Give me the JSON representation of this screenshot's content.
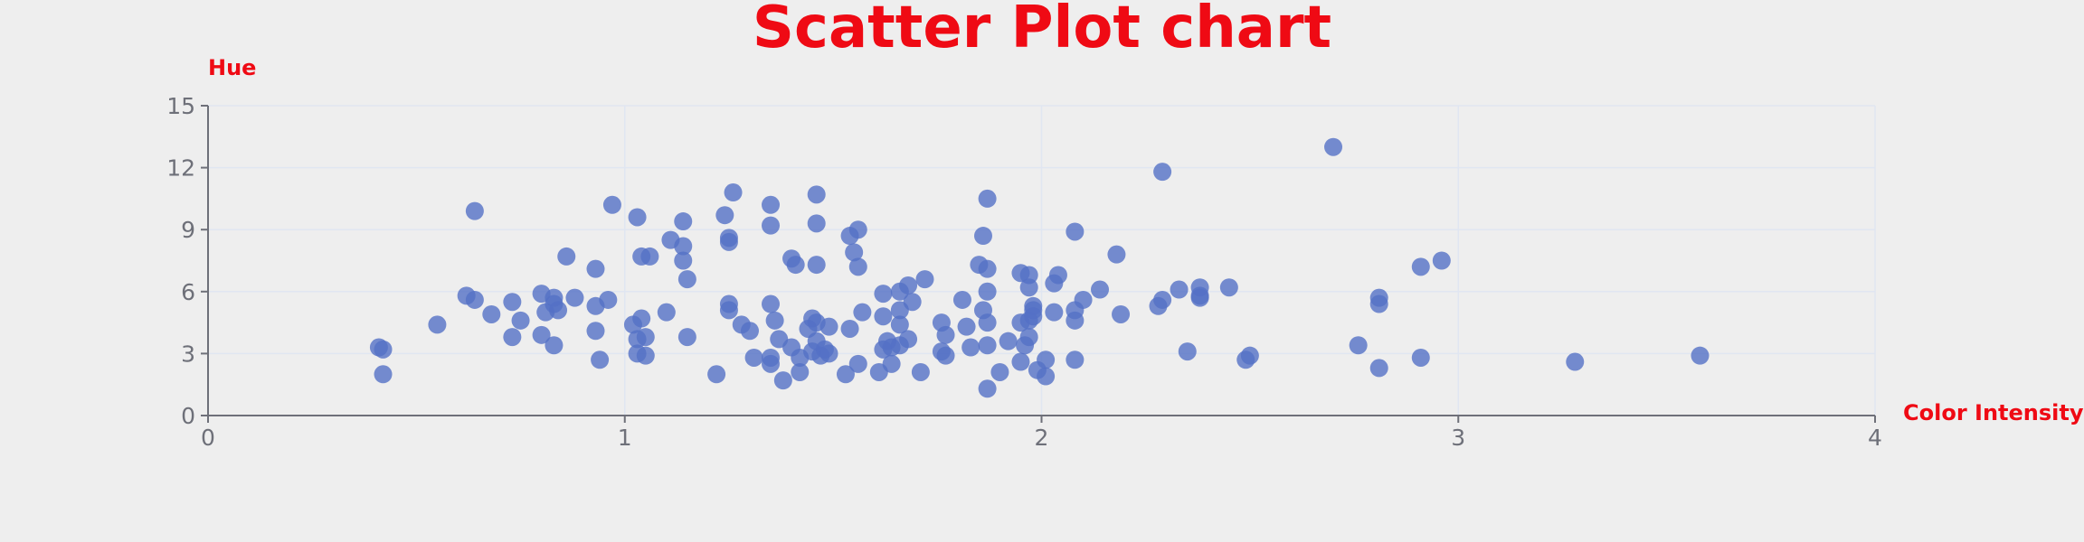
{
  "chart_data": {
    "type": "scatter",
    "title": "Scatter Plot chart",
    "xlabel": "Color Intensity",
    "ylabel": "Hue",
    "xlim": [
      0,
      4
    ],
    "ylim": [
      0,
      15
    ],
    "x_ticks": [
      0,
      1,
      2,
      3,
      4
    ],
    "y_ticks": [
      0,
      3,
      6,
      9,
      12,
      15
    ],
    "grid": true,
    "colors": {
      "point": "#5470c6",
      "title": "#ef0a14",
      "axis_name": "#ef0a14",
      "tick_label": "#6e7079",
      "grid": "#e0e6f1"
    },
    "points": [
      [
        0.41,
        3.3
      ],
      [
        0.42,
        3.2
      ],
      [
        0.42,
        2.0
      ],
      [
        0.55,
        4.4
      ],
      [
        0.62,
        5.8
      ],
      [
        0.64,
        5.6
      ],
      [
        0.64,
        9.9
      ],
      [
        0.68,
        4.9
      ],
      [
        0.73,
        3.8
      ],
      [
        0.73,
        5.5
      ],
      [
        0.75,
        4.6
      ],
      [
        0.8,
        3.9
      ],
      [
        0.8,
        5.9
      ],
      [
        0.81,
        5.0
      ],
      [
        0.83,
        5.7
      ],
      [
        0.83,
        5.4
      ],
      [
        0.83,
        3.4
      ],
      [
        0.84,
        5.1
      ],
      [
        0.86,
        7.7
      ],
      [
        0.88,
        5.7
      ],
      [
        0.93,
        7.1
      ],
      [
        0.93,
        4.1
      ],
      [
        0.93,
        5.3
      ],
      [
        0.94,
        2.7
      ],
      [
        0.96,
        5.6
      ],
      [
        0.97,
        10.2
      ],
      [
        1.02,
        4.4
      ],
      [
        1.03,
        9.6
      ],
      [
        1.03,
        3.7
      ],
      [
        1.03,
        3.0
      ],
      [
        1.04,
        7.7
      ],
      [
        1.04,
        4.7
      ],
      [
        1.05,
        2.9
      ],
      [
        1.05,
        3.8
      ],
      [
        1.06,
        7.7
      ],
      [
        1.1,
        5.0
      ],
      [
        1.11,
        8.5
      ],
      [
        1.14,
        9.4
      ],
      [
        1.14,
        8.2
      ],
      [
        1.14,
        7.5
      ],
      [
        1.15,
        6.6
      ],
      [
        1.15,
        3.8
      ],
      [
        1.22,
        2.0
      ],
      [
        1.24,
        9.7
      ],
      [
        1.25,
        8.6
      ],
      [
        1.25,
        8.4
      ],
      [
        1.25,
        5.4
      ],
      [
        1.25,
        5.1
      ],
      [
        1.26,
        10.8
      ],
      [
        1.28,
        4.4
      ],
      [
        1.3,
        4.1
      ],
      [
        1.31,
        2.8
      ],
      [
        1.35,
        10.2
      ],
      [
        1.35,
        9.2
      ],
      [
        1.35,
        5.4
      ],
      [
        1.35,
        2.8
      ],
      [
        1.35,
        2.5
      ],
      [
        1.36,
        4.6
      ],
      [
        1.37,
        3.7
      ],
      [
        1.38,
        1.7
      ],
      [
        1.4,
        7.6
      ],
      [
        1.4,
        3.3
      ],
      [
        1.41,
        7.3
      ],
      [
        1.42,
        2.8
      ],
      [
        1.42,
        2.1
      ],
      [
        1.44,
        4.2
      ],
      [
        1.45,
        4.7
      ],
      [
        1.45,
        3.1
      ],
      [
        1.46,
        10.7
      ],
      [
        1.46,
        9.3
      ],
      [
        1.46,
        7.3
      ],
      [
        1.46,
        4.5
      ],
      [
        1.46,
        3.6
      ],
      [
        1.47,
        2.9
      ],
      [
        1.48,
        3.2
      ],
      [
        1.49,
        4.3
      ],
      [
        1.49,
        3.0
      ],
      [
        1.53,
        2.0
      ],
      [
        1.54,
        8.7
      ],
      [
        1.54,
        4.2
      ],
      [
        1.55,
        7.9
      ],
      [
        1.56,
        9.0
      ],
      [
        1.56,
        7.2
      ],
      [
        1.56,
        2.5
      ],
      [
        1.57,
        5.0
      ],
      [
        1.61,
        2.1
      ],
      [
        1.62,
        5.9
      ],
      [
        1.62,
        4.8
      ],
      [
        1.62,
        3.2
      ],
      [
        1.63,
        3.6
      ],
      [
        1.64,
        3.3
      ],
      [
        1.64,
        2.5
      ],
      [
        1.66,
        6.0
      ],
      [
        1.66,
        5.1
      ],
      [
        1.66,
        4.4
      ],
      [
        1.66,
        3.4
      ],
      [
        1.68,
        6.3
      ],
      [
        1.68,
        3.7
      ],
      [
        1.69,
        5.5
      ],
      [
        1.71,
        2.1
      ],
      [
        1.72,
        6.6
      ],
      [
        1.76,
        4.5
      ],
      [
        1.76,
        3.1
      ],
      [
        1.77,
        3.9
      ],
      [
        1.77,
        2.9
      ],
      [
        1.81,
        5.6
      ],
      [
        1.82,
        4.3
      ],
      [
        1.83,
        3.3
      ],
      [
        1.85,
        7.3
      ],
      [
        1.86,
        8.7
      ],
      [
        1.86,
        5.1
      ],
      [
        1.87,
        10.5
      ],
      [
        1.87,
        7.1
      ],
      [
        1.87,
        6.0
      ],
      [
        1.87,
        4.5
      ],
      [
        1.87,
        3.4
      ],
      [
        1.87,
        1.3
      ],
      [
        1.9,
        2.1
      ],
      [
        1.92,
        3.6
      ],
      [
        1.95,
        6.9
      ],
      [
        1.95,
        4.5
      ],
      [
        1.95,
        2.6
      ],
      [
        1.96,
        3.4
      ],
      [
        1.97,
        6.8
      ],
      [
        1.97,
        6.2
      ],
      [
        1.97,
        4.6
      ],
      [
        1.97,
        3.8
      ],
      [
        1.98,
        5.3
      ],
      [
        1.98,
        5.1
      ],
      [
        1.98,
        4.8
      ],
      [
        1.99,
        2.2
      ],
      [
        2.01,
        2.7
      ],
      [
        2.01,
        1.9
      ],
      [
        2.03,
        6.4
      ],
      [
        2.03,
        5.0
      ],
      [
        2.04,
        6.8
      ],
      [
        2.08,
        8.9
      ],
      [
        2.08,
        5.1
      ],
      [
        2.08,
        4.6
      ],
      [
        2.08,
        2.7
      ],
      [
        2.1,
        5.6
      ],
      [
        2.14,
        6.1
      ],
      [
        2.18,
        7.8
      ],
      [
        2.19,
        4.9
      ],
      [
        2.28,
        5.3
      ],
      [
        2.29,
        11.8
      ],
      [
        2.29,
        5.6
      ],
      [
        2.33,
        6.1
      ],
      [
        2.35,
        3.1
      ],
      [
        2.38,
        6.2
      ],
      [
        2.38,
        5.8
      ],
      [
        2.38,
        5.7
      ],
      [
        2.45,
        6.2
      ],
      [
        2.49,
        2.7
      ],
      [
        2.5,
        2.9
      ],
      [
        2.7,
        13.0
      ],
      [
        2.76,
        3.4
      ],
      [
        2.81,
        5.7
      ],
      [
        2.81,
        5.4
      ],
      [
        2.81,
        2.3
      ],
      [
        2.91,
        7.2
      ],
      [
        2.91,
        2.8
      ],
      [
        2.96,
        7.5
      ],
      [
        3.28,
        2.6
      ],
      [
        3.58,
        2.9
      ]
    ]
  }
}
